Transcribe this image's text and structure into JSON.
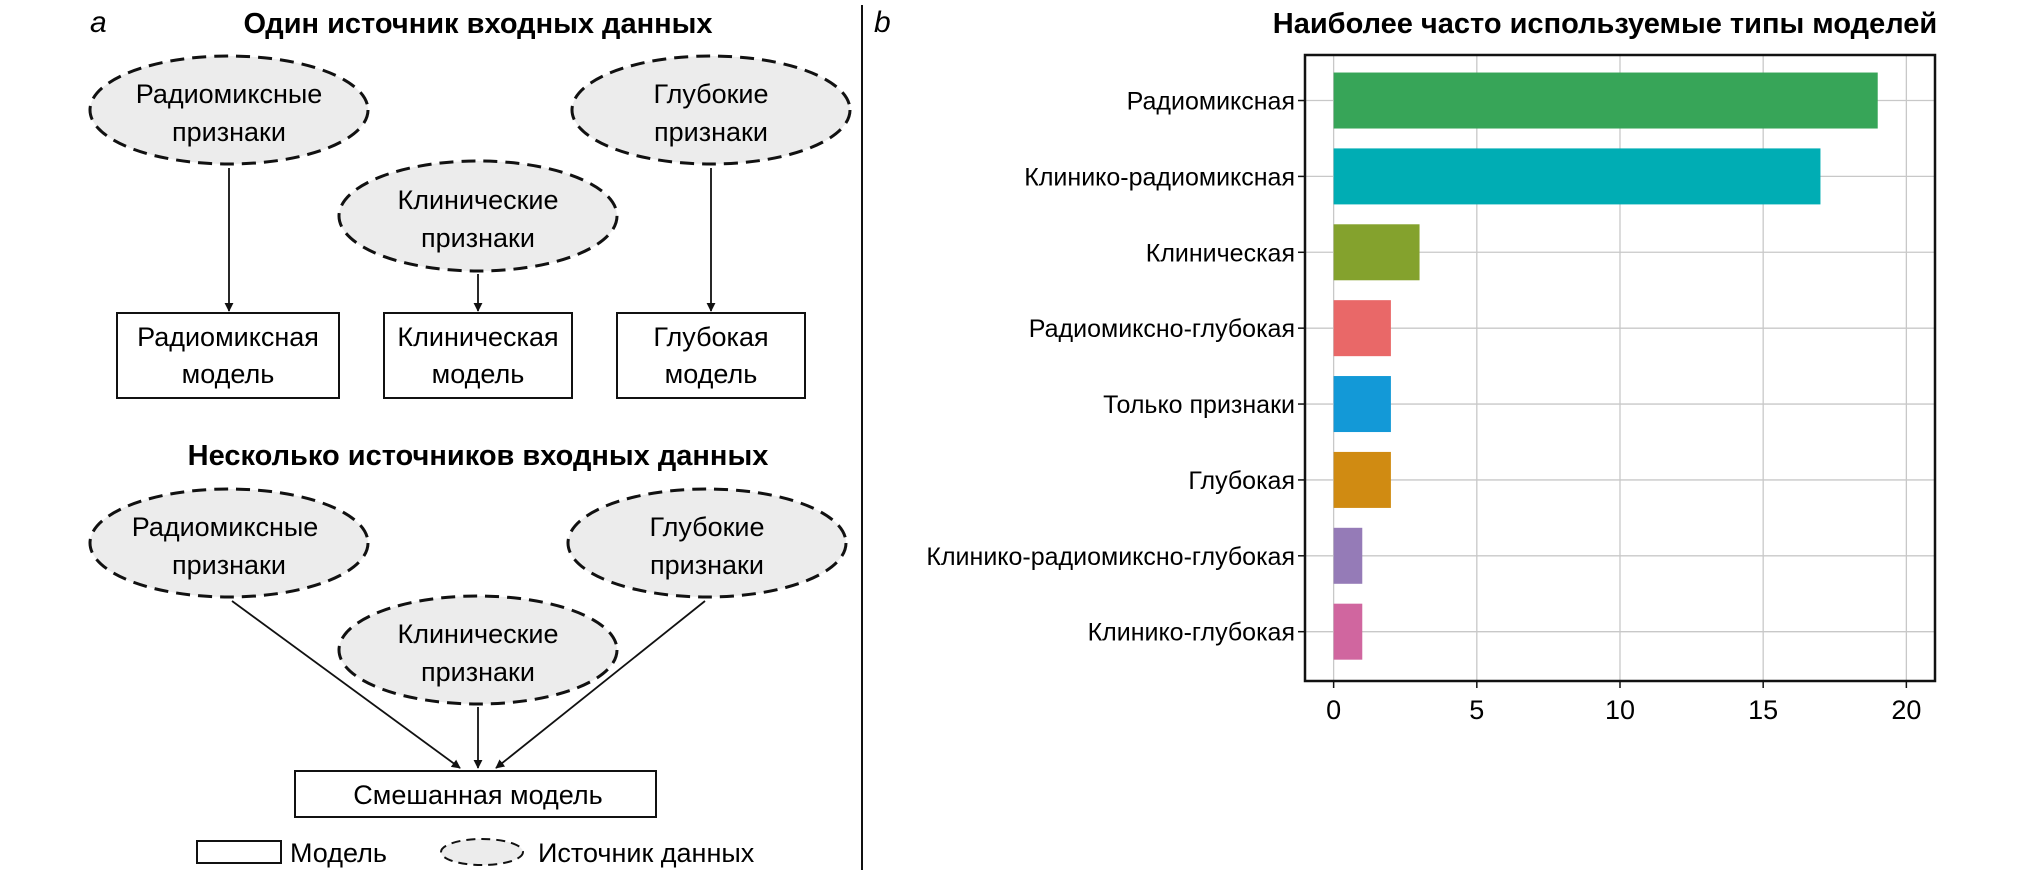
{
  "panel_a": {
    "label": "a",
    "single_title": "Один источник входных данных",
    "multi_title": "Несколько источников входных данных",
    "sources": {
      "radiomic": [
        "Радиомиксные",
        "признаки"
      ],
      "clinical": [
        "Клинические",
        "признаки"
      ],
      "deep": [
        "Глубокие",
        "признаки"
      ]
    },
    "models": {
      "radiomic": [
        "Радиомиксная",
        "модель"
      ],
      "clinical": [
        "Клиническая",
        "модель"
      ],
      "deep": [
        "Глубокая",
        "модель"
      ],
      "mixed": "Смешанная модель"
    },
    "legend": {
      "model": "Модель",
      "source": "Источник данных"
    }
  },
  "panel_b": {
    "label": "b"
  },
  "chart_data": {
    "type": "bar",
    "orientation": "horizontal",
    "title": "Наиболее часто используемые типы моделей",
    "categories": [
      "Радиомиксная",
      "Клинико-радиомиксная",
      "Клиническая",
      "Радиомиксно-глубокая",
      "Только признаки",
      "Глубокая",
      "Клинико-радиомиксно-глубокая",
      "Клинико-глубокая"
    ],
    "values": [
      19,
      17,
      3,
      2,
      2,
      2,
      1,
      1
    ],
    "colors": [
      "#37a558",
      "#00adb4",
      "#84a22d",
      "#e96868",
      "#1399d7",
      "#d08b12",
      "#957bb7",
      "#d0669f"
    ],
    "xlim": [
      -1,
      21
    ],
    "xticks": [
      0,
      5,
      10,
      15,
      20
    ],
    "xlabel": "",
    "ylabel": "",
    "grid": true
  }
}
